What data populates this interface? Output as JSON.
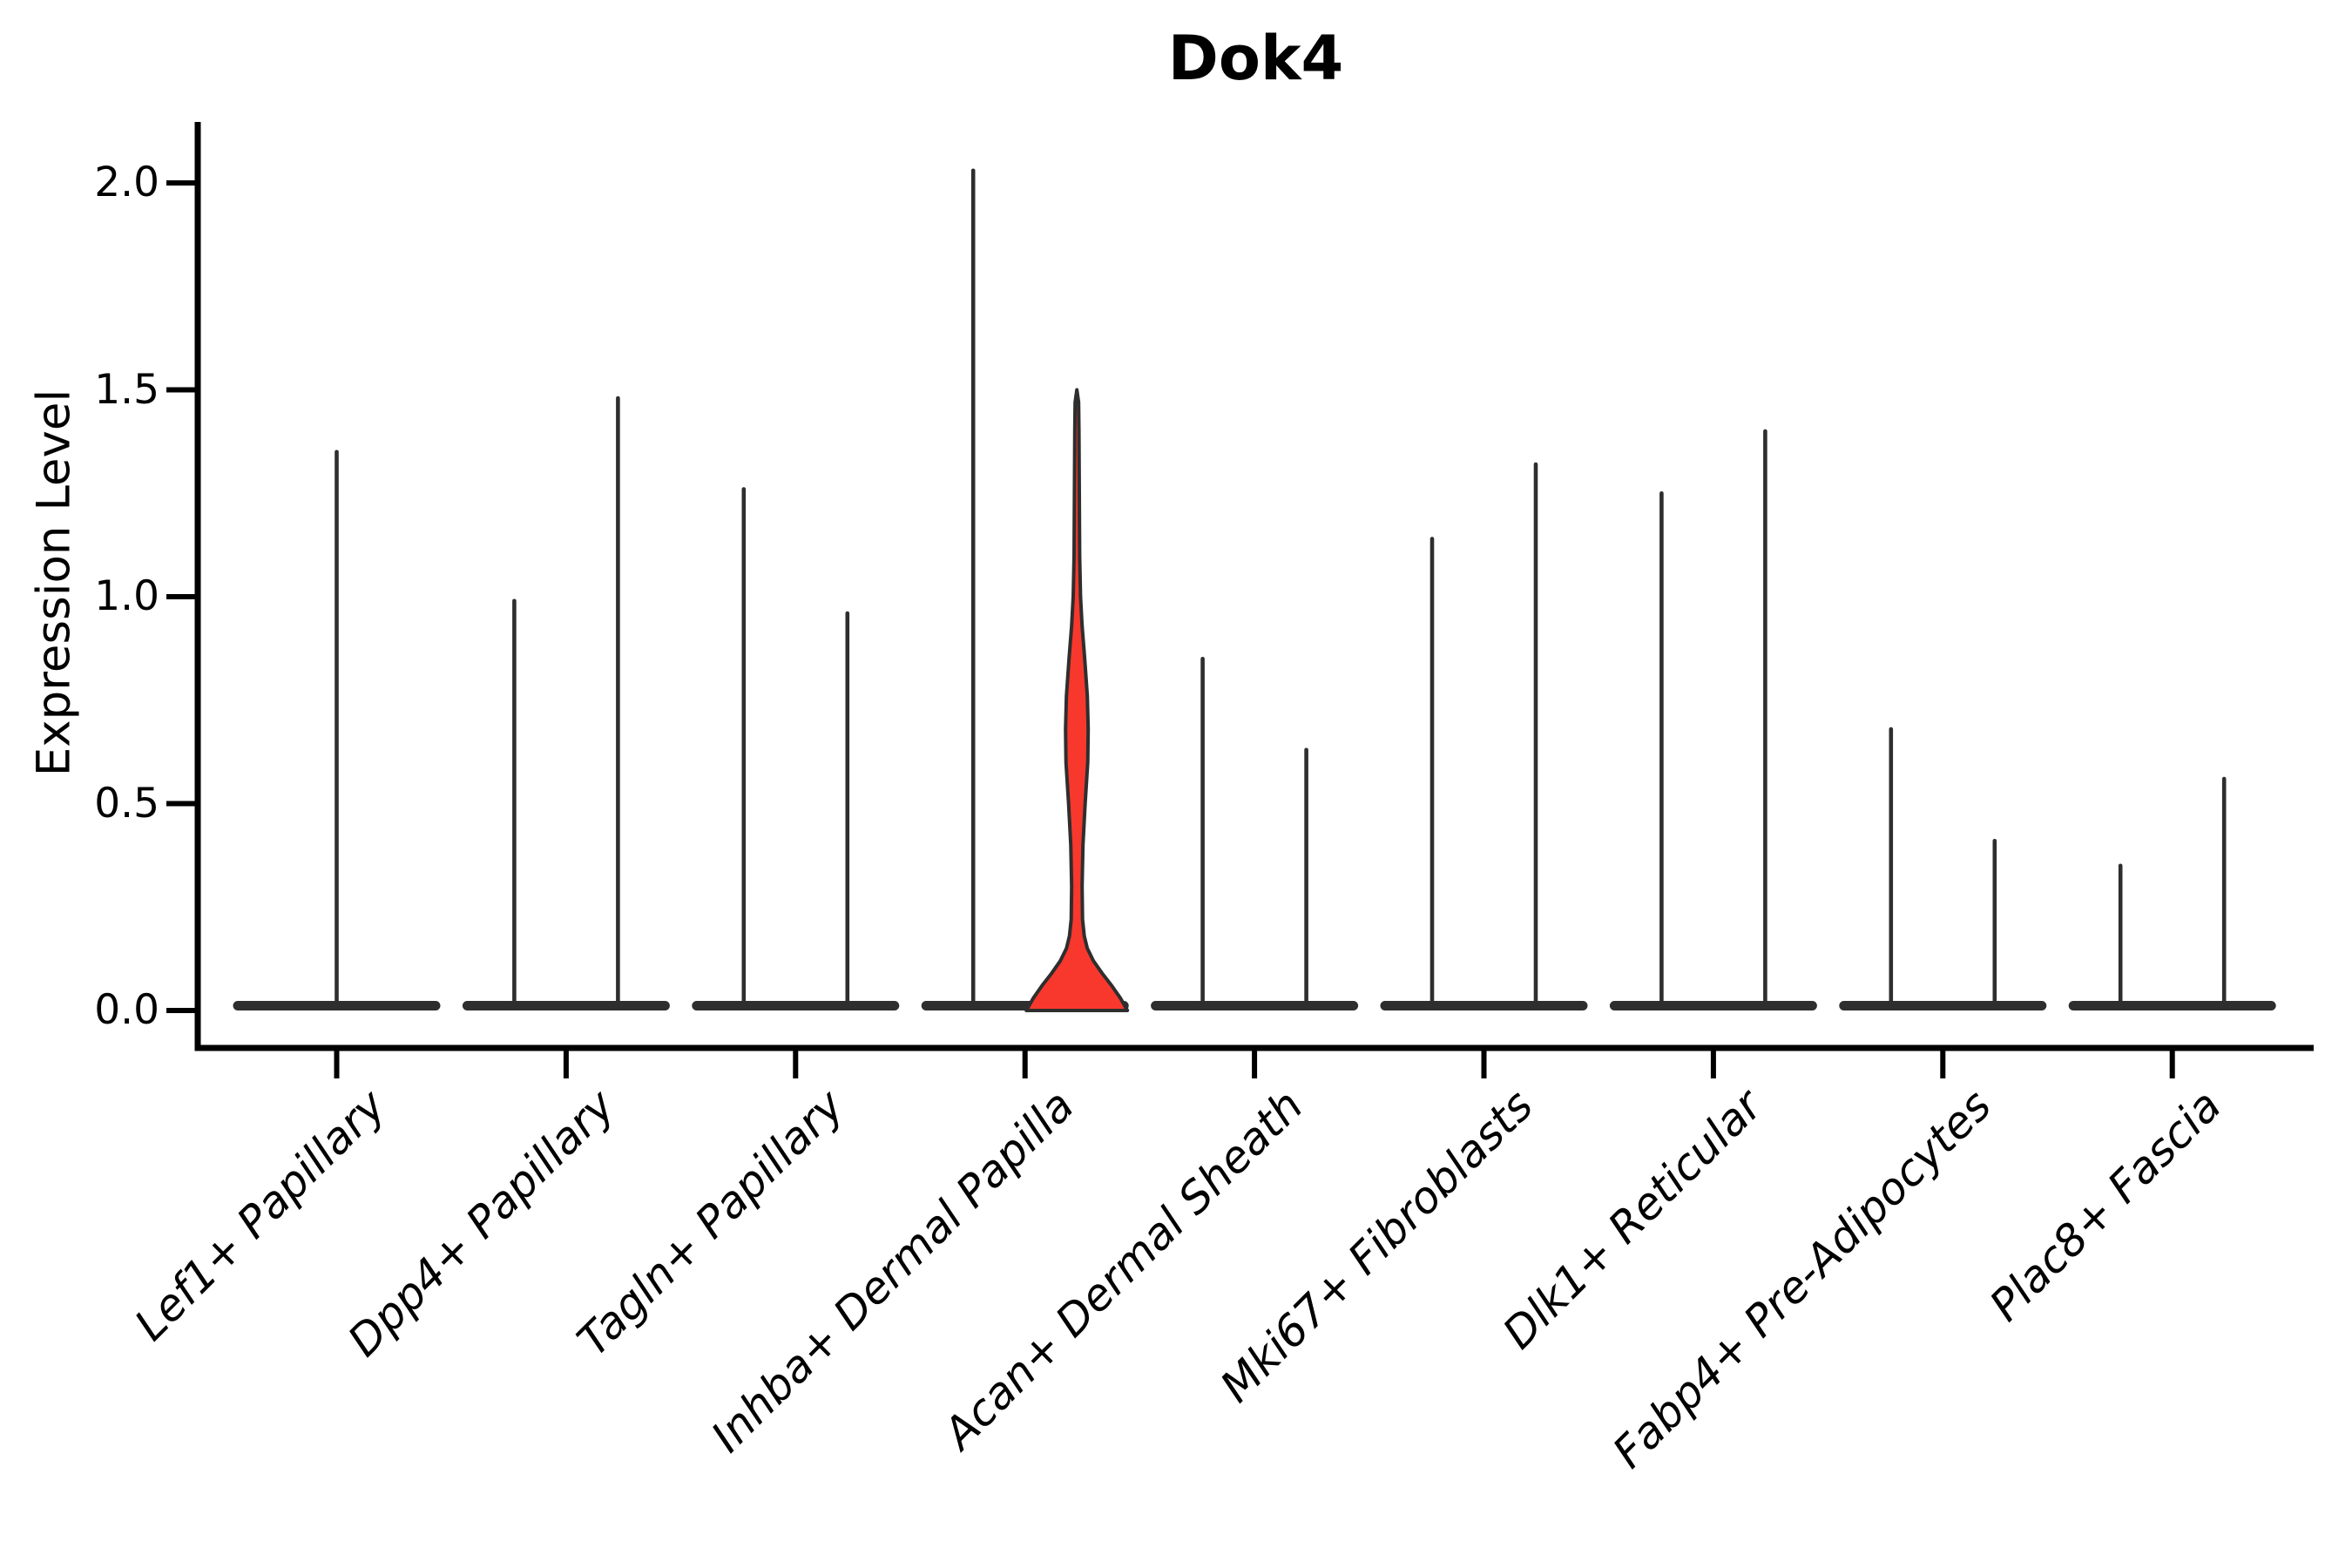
{
  "chart_data": {
    "type": "violin",
    "title": "Dok4",
    "ylabel": "Expression Level",
    "xlabel": "",
    "ylim": [
      0,
      2.15
    ],
    "grid": false,
    "legend": "none",
    "yticks": [
      {
        "label": "0.0",
        "value": 0.0
      },
      {
        "label": "0.5",
        "value": 0.5
      },
      {
        "label": "1.0",
        "value": 1.0
      },
      {
        "label": "1.5",
        "value": 1.5
      },
      {
        "label": "2.0",
        "value": 2.0
      }
    ],
    "x_tick_rotation_deg": 45,
    "x_tick_style": "italic",
    "stroke_color": "#2e2e2e",
    "axis_color": "#000000",
    "highlight_fill": "#f8382d",
    "categories": [
      {
        "label": "Lef1+ Papillary",
        "violins": [
          {
            "slot": "center",
            "max_expression": 1.35,
            "filled": false
          }
        ]
      },
      {
        "label": "Dpp4+ Papillary",
        "violins": [
          {
            "slot": "left",
            "max_expression": 0.99,
            "filled": false
          },
          {
            "slot": "right",
            "max_expression": 1.48,
            "filled": false
          }
        ]
      },
      {
        "label": "Tagln+ Papillary",
        "violins": [
          {
            "slot": "left",
            "max_expression": 1.26,
            "filled": false
          },
          {
            "slot": "right",
            "max_expression": 0.96,
            "filled": false
          }
        ]
      },
      {
        "label": "Inhba+ Dermal Papilla",
        "violins": [
          {
            "slot": "left",
            "max_expression": 2.03,
            "filled": false
          },
          {
            "slot": "right",
            "max_expression": 1.5,
            "filled": true,
            "fill_color": "#f8382d"
          }
        ]
      },
      {
        "label": "Acan+ Dermal Sheath",
        "violins": [
          {
            "slot": "left",
            "max_expression": 0.85,
            "filled": false
          },
          {
            "slot": "right",
            "max_expression": 0.63,
            "filled": false
          }
        ]
      },
      {
        "label": "Mki67+ Fibroblasts",
        "violins": [
          {
            "slot": "left",
            "max_expression": 1.14,
            "filled": false
          },
          {
            "slot": "right",
            "max_expression": 1.32,
            "filled": false
          }
        ]
      },
      {
        "label": "Dlk1+ Reticular",
        "violins": [
          {
            "slot": "left",
            "max_expression": 1.25,
            "filled": false
          },
          {
            "slot": "right",
            "max_expression": 1.4,
            "filled": false
          }
        ]
      },
      {
        "label": "Fabp4+ Pre-Adipocytes",
        "violins": [
          {
            "slot": "left",
            "max_expression": 0.68,
            "filled": false
          },
          {
            "slot": "right",
            "max_expression": 0.41,
            "filled": false
          }
        ]
      },
      {
        "label": "Plac8+ Fascia",
        "violins": [
          {
            "slot": "left",
            "max_expression": 0.35,
            "filled": false
          },
          {
            "slot": "right",
            "max_expression": 0.56,
            "filled": false
          }
        ]
      }
    ],
    "filled_violin_profile": [
      [
        0.0,
        58
      ],
      [
        0.03,
        50
      ],
      [
        0.06,
        40
      ],
      [
        0.09,
        29
      ],
      [
        0.12,
        19
      ],
      [
        0.15,
        12
      ],
      [
        0.18,
        8.5
      ],
      [
        0.22,
        6.5
      ],
      [
        0.3,
        6.0
      ],
      [
        0.4,
        7.0
      ],
      [
        0.5,
        9.5
      ],
      [
        0.6,
        12.5
      ],
      [
        0.68,
        13.0
      ],
      [
        0.76,
        12.0
      ],
      [
        0.85,
        9.0
      ],
      [
        0.93,
        6.0
      ],
      [
        1.0,
        4.2
      ],
      [
        1.1,
        3.2
      ],
      [
        1.25,
        2.8
      ],
      [
        1.4,
        2.4
      ],
      [
        1.47,
        2.0
      ],
      [
        1.5,
        0.0
      ]
    ]
  }
}
